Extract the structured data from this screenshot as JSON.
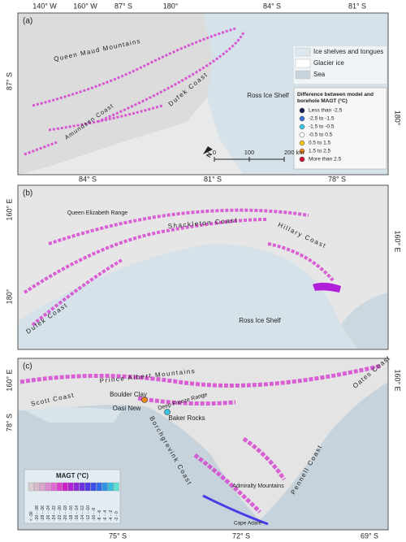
{
  "panels": [
    {
      "label": "(a)",
      "top_labels": [
        "140° W",
        "160° W",
        "87° S",
        "180°",
        "84° S",
        "81° S"
      ],
      "left_labels": [
        "87° S"
      ],
      "right_labels": [
        "180°"
      ],
      "place_labels": [
        "Queen Maud Mountains",
        "Amundsen Coast",
        "Dufek Coast",
        "Ross Ice Shelf"
      ]
    },
    {
      "label": "(b)",
      "top_labels": [
        "84° S",
        "81° S",
        "78° S"
      ],
      "left_labels": [
        "160° E",
        "180°"
      ],
      "right_labels": [
        "160° E"
      ],
      "place_labels": [
        "Queen Elizabeth Range",
        "Shackleton Coast",
        "Hillary Coast",
        "Dufek Coast",
        "Ross Ice Shelf"
      ]
    },
    {
      "label": "(c)",
      "bottom_labels": [
        "75° S",
        "72° S",
        "69° S"
      ],
      "left_labels": [
        "160° E",
        "78° S"
      ],
      "right_labels": [
        "160° E"
      ],
      "place_labels": [
        "Prince Albert Mountains",
        "Scott Coast",
        "Boulder Clay",
        "Deep Freeze Range",
        "Oasi New",
        "Baker Rocks",
        "Borchgrevink Coast",
        "Admiralty Mountains",
        "Pennell Coast",
        "Oates Coast",
        "Cape Adare"
      ]
    }
  ],
  "legend_surface": {
    "items": [
      {
        "label": "Ice shelves and tongues",
        "color": "#dde8ee"
      },
      {
        "label": "Glacier ice",
        "color": "#ffffff"
      },
      {
        "label": "Sea",
        "color": "#c6d3dc"
      }
    ]
  },
  "legend_difference": {
    "title": "Difference between model and borehole MAGT (°C)",
    "items": [
      {
        "label": "Less than -2.5",
        "color": "#1c1f52"
      },
      {
        "label": "-2.5 to -1.5",
        "color": "#3d6fcf"
      },
      {
        "label": "-1.5 to -0.5",
        "color": "#38c6e6"
      },
      {
        "label": "-0.5 to 0.5",
        "color": "#ffffff"
      },
      {
        "label": "0.5 to 1.5",
        "color": "#f2c31b"
      },
      {
        "label": "1.5 to 2.5",
        "color": "#f08a1c"
      },
      {
        "label": "More than 2.5",
        "color": "#d0103a"
      }
    ]
  },
  "scale_bar": {
    "ticks": [
      "0",
      "100",
      "200 km"
    ]
  },
  "north": "N",
  "legend_magt": {
    "title": "MAGT (°C)",
    "items": [
      {
        "label": "< -30",
        "color": "#dccdd3"
      },
      {
        "label": "-30 - -28",
        "color": "#d8bccb"
      },
      {
        "label": "-28 - -26",
        "color": "#d9a6cc"
      },
      {
        "label": "-26 - -24",
        "color": "#de8ad0"
      },
      {
        "label": "-24 - -22",
        "color": "#e06ad2"
      },
      {
        "label": "-22 - -20",
        "color": "#dc3fd0"
      },
      {
        "label": "-20 - -18",
        "color": "#cf20cc"
      },
      {
        "label": "-18 - -16",
        "color": "#b321d6"
      },
      {
        "label": "-16 - -14",
        "color": "#9128dc"
      },
      {
        "label": "-14 - -12",
        "color": "#7030e0"
      },
      {
        "label": "-12 - -10",
        "color": "#503ce4"
      },
      {
        "label": "-10 - -8",
        "color": "#3a4ee8"
      },
      {
        "label": "-8 - -6",
        "color": "#2f6de8"
      },
      {
        "label": "-6 - -4",
        "color": "#2c95e4"
      },
      {
        "label": "-4 - -2",
        "color": "#35bfdc"
      },
      {
        "label": "-2 - 0",
        "color": "#5ee0d2"
      }
    ]
  }
}
